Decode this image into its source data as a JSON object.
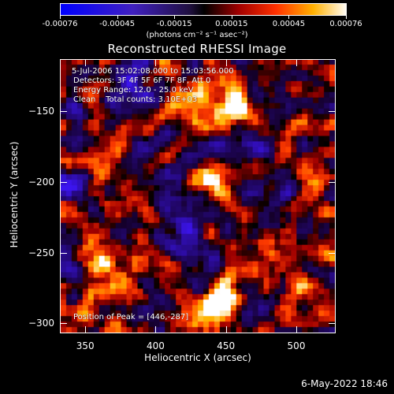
{
  "chart_data": {
    "type": "heatmap",
    "title": "Reconstructed RHESSI Image",
    "xlabel": "Heliocentric X (arcsec)",
    "ylabel": "Heliocentric Y (arcsec)",
    "xlim": [
      332,
      528
    ],
    "ylim": [
      -307,
      -113
    ],
    "x_ticks": [
      350,
      400,
      450,
      500
    ],
    "y_ticks": [
      -150,
      -200,
      -250,
      -300
    ],
    "colorbar": {
      "ticks": [
        "-0.00076",
        "-0.00045",
        "-0.00015",
        "0.00015",
        "0.00045",
        "0.00076"
      ],
      "range": [
        -0.00076,
        0.00076
      ],
      "units": "(photons cm⁻² s⁻¹ asec⁻²)"
    },
    "info_lines": [
      "5-Jul-2006 15:02:08.000 to 15:03:56.000",
      "Detectors: 3F 4F 5F 6F 7F 8F, Att 0",
      "Energy Range: 12.0 - 25.0 keV",
      "Clean    Total counts: 3.10E+03"
    ],
    "peak_text": "Position of Peak = [446,-287]",
    "peak": [
      446,
      -287
    ]
  },
  "timestamp": "6-May-2022 18:46",
  "colors": {
    "background": "#000000",
    "foreground": "#ffffff"
  }
}
